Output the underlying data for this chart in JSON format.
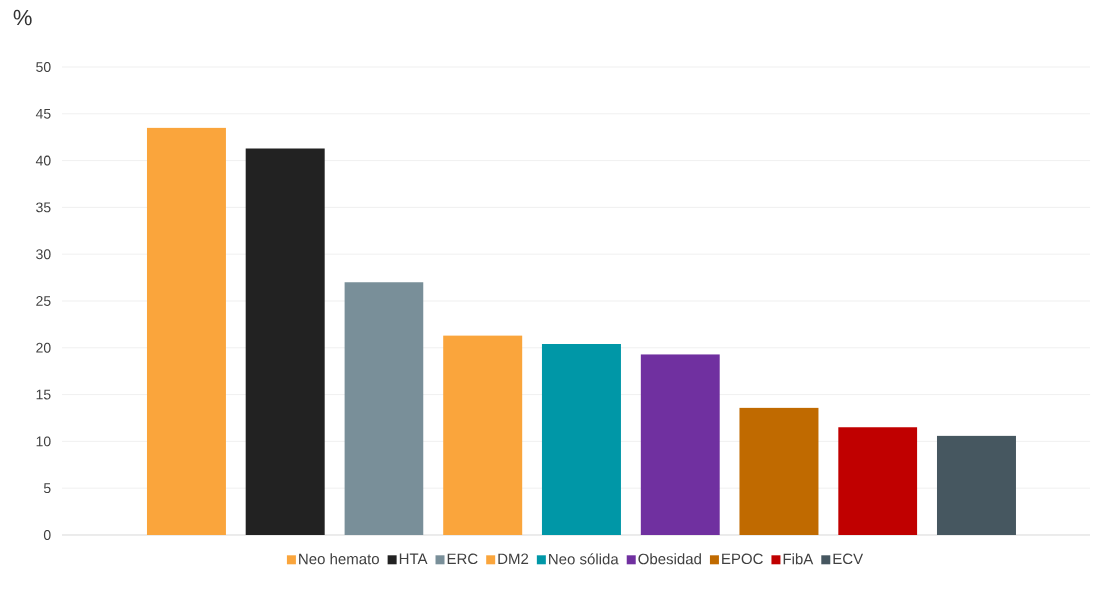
{
  "chart_data": {
    "type": "bar",
    "ylabel": "%",
    "categories": [
      null
    ],
    "series": [
      {
        "name": "Neo hemato",
        "color": "#faa53c",
        "values": [
          43.5
        ]
      },
      {
        "name": "HTA",
        "color": "#222222",
        "values": [
          41.3
        ]
      },
      {
        "name": "ERC",
        "color": "#798f99",
        "values": [
          27.0
        ]
      },
      {
        "name": "DM2",
        "color": "#faa53c",
        "values": [
          21.3
        ]
      },
      {
        "name": "Neo sólida",
        "color": "#0097a7",
        "values": [
          20.4
        ]
      },
      {
        "name": "Obesidad",
        "color": "#7030a0",
        "values": [
          19.3
        ]
      },
      {
        "name": "EPOC",
        "color": "#c06a00",
        "values": [
          13.6
        ]
      },
      {
        "name": "FibA",
        "color": "#c00000",
        "values": [
          11.5
        ]
      },
      {
        "name": "ECV",
        "color": "#465760",
        "values": [
          10.6
        ]
      }
    ],
    "ylim": [
      0,
      50
    ],
    "yticks": [
      0,
      5,
      10,
      15,
      20,
      25,
      30,
      35,
      40,
      45,
      50
    ],
    "grid": "y",
    "legend": "bottom",
    "tick_labels": "y"
  }
}
